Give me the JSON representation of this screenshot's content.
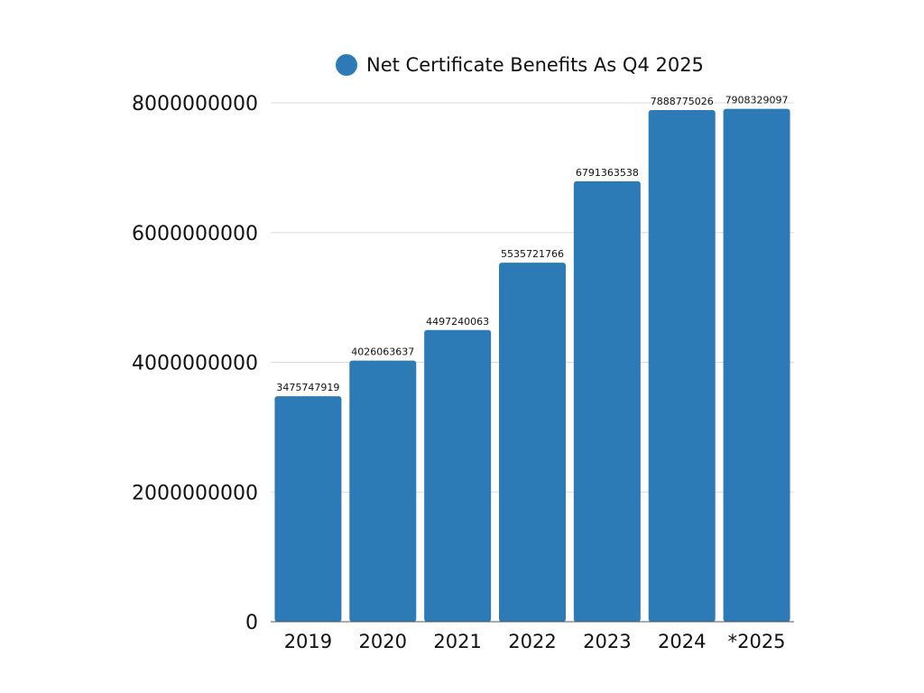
{
  "chart_data": {
    "type": "bar",
    "title": "",
    "xlabel": "",
    "ylabel": "",
    "categories": [
      "2019",
      "2020",
      "2021",
      "2022",
      "2023",
      "2024",
      "*2025"
    ],
    "series": [
      {
        "name": "Net Certificate Benefits As Q4 2025",
        "values": [
          3475747919,
          4026063637,
          4497240063,
          5535721766,
          6791363538,
          7888775026,
          7908329097
        ],
        "data_labels": [
          "3475747919",
          "4026063637",
          "4497240063",
          "5535721766",
          "6791363538",
          "7888775026",
          "7908329097"
        ]
      }
    ],
    "ylim": [
      0,
      8000000000
    ],
    "yticks": [
      0,
      2000000000,
      4000000000,
      6000000000,
      8000000000
    ],
    "ytick_labels": [
      "0",
      "2000000000",
      "4000000000",
      "6000000000",
      "8000000000"
    ],
    "grid": true,
    "legend_position": "top-center",
    "colors": {
      "bar": "#2d7bb6",
      "grid": "#d9d9d9",
      "axis": "#555555"
    }
  }
}
